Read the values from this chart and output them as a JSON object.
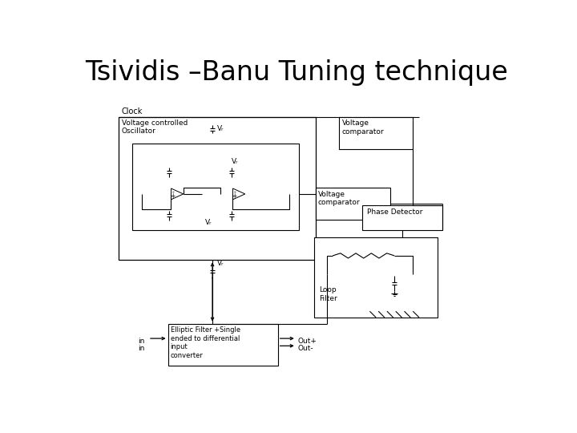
{
  "title": "Tsividis –Banu Tuning technique",
  "title_fontsize": 24,
  "bg_color": "#ffffff",
  "line_color": "#000000",
  "font_color": "#000000",
  "labels": {
    "clock": "Clock",
    "vco": "Voltage controlled\nOscillator",
    "vr": "Vᵣ",
    "voltage_comp_top": "Voltage\ncomparator",
    "voltage_comp_mid": "Voltage\ncomparator",
    "phase_det": "Phase Detector",
    "loop_filter": "Loop\nFilter",
    "elliptic": "Elliptic Filter +Single\nended to differential\ninput\nconverter",
    "in1": "in",
    "in2": "in",
    "out_plus": "Out+",
    "out_minus": "Out-"
  }
}
